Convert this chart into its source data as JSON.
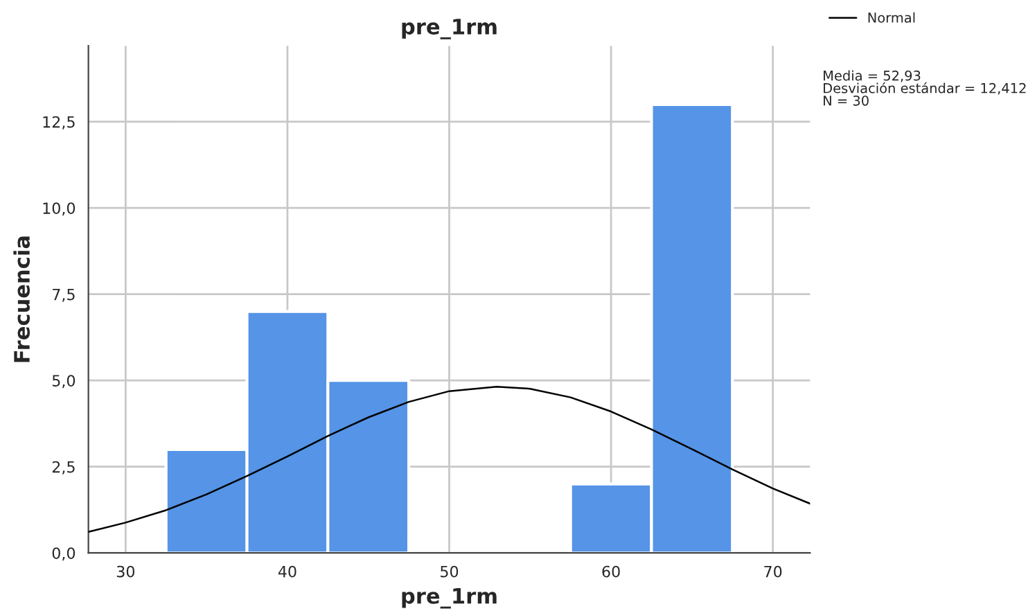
{
  "chart_data": {
    "type": "histogram",
    "title": "pre_1rm",
    "xlabel": "pre_1rm",
    "ylabel": "Frecuencia",
    "bins": [
      32.5,
      37.5,
      42.5,
      47.5,
      52.5,
      57.5,
      62.5,
      67.5
    ],
    "values": [
      3,
      7,
      5,
      0,
      0,
      2,
      13
    ],
    "color": "#5594e6",
    "series": [
      {
        "name": "Normal",
        "type": "line",
        "color": "#000000",
        "x": [
          27.7,
          30,
          32.5,
          35,
          37.5,
          40,
          42.5,
          45,
          47.5,
          50,
          52.93,
          55,
          57.5,
          60,
          62.5,
          65,
          67.5,
          70,
          72.3
        ],
        "values": [
          0.61,
          0.88,
          1.24,
          1.7,
          2.23,
          2.8,
          3.39,
          3.93,
          4.38,
          4.69,
          4.82,
          4.76,
          4.51,
          4.1,
          3.58,
          3.01,
          2.42,
          1.87,
          1.43
        ]
      }
    ],
    "xlim": [
      27.7,
      72.3
    ],
    "xticks": [
      30,
      40,
      50,
      60,
      70
    ],
    "ylim": [
      0,
      14.7
    ],
    "yticks": [
      {
        "value": 0,
        "label": "0,0"
      },
      {
        "value": 2.5,
        "label": "2,5"
      },
      {
        "value": 5,
        "label": "5,0"
      },
      {
        "value": 7.5,
        "label": "7,5"
      },
      {
        "value": 10,
        "label": "10,0"
      },
      {
        "value": 12.5,
        "label": "12,5"
      }
    ],
    "grid": true,
    "legend": "top right",
    "annotations": [
      "Media = 52,93\nDesviación estándar = 12,412\nN = 30"
    ]
  }
}
